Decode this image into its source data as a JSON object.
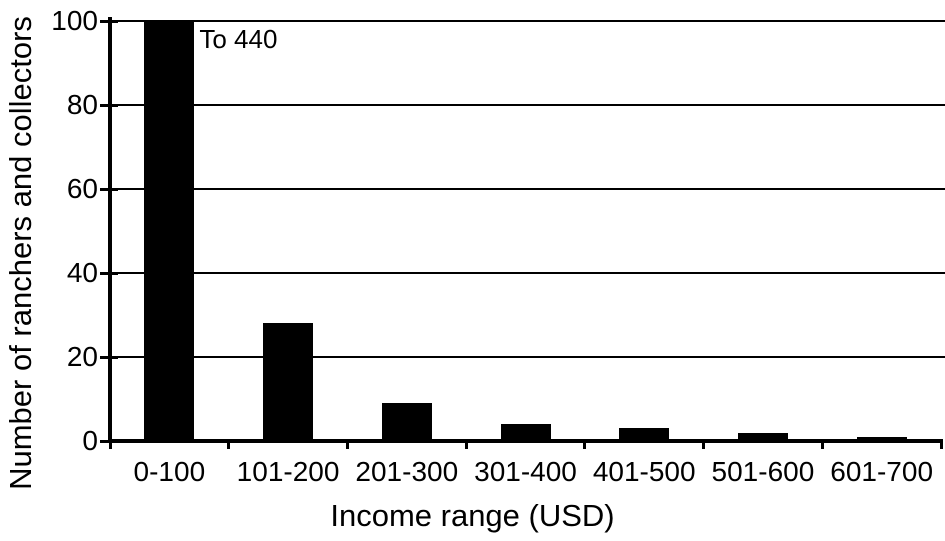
{
  "figure": {
    "background": "#ffffff",
    "foreground": "#000000"
  },
  "chart_data": {
    "type": "bar",
    "title": "",
    "xlabel": "Income range (USD)",
    "ylabel": "Number of ranchers and collectors",
    "categories": [
      "0-100",
      "101-200",
      "201-300",
      "301-400",
      "401-500",
      "501-600",
      "601-700"
    ],
    "values": [
      440,
      28,
      9,
      4,
      3,
      2,
      1
    ],
    "ylim": [
      0,
      100
    ],
    "yticks": [
      0,
      20,
      40,
      60,
      80,
      100
    ],
    "clip_note": "first bar clipped at y-axis maximum of 100",
    "annotation": {
      "text": "To 440",
      "target_category": "0-100"
    },
    "bar_color": "#000000",
    "grid": true,
    "legend": false
  }
}
